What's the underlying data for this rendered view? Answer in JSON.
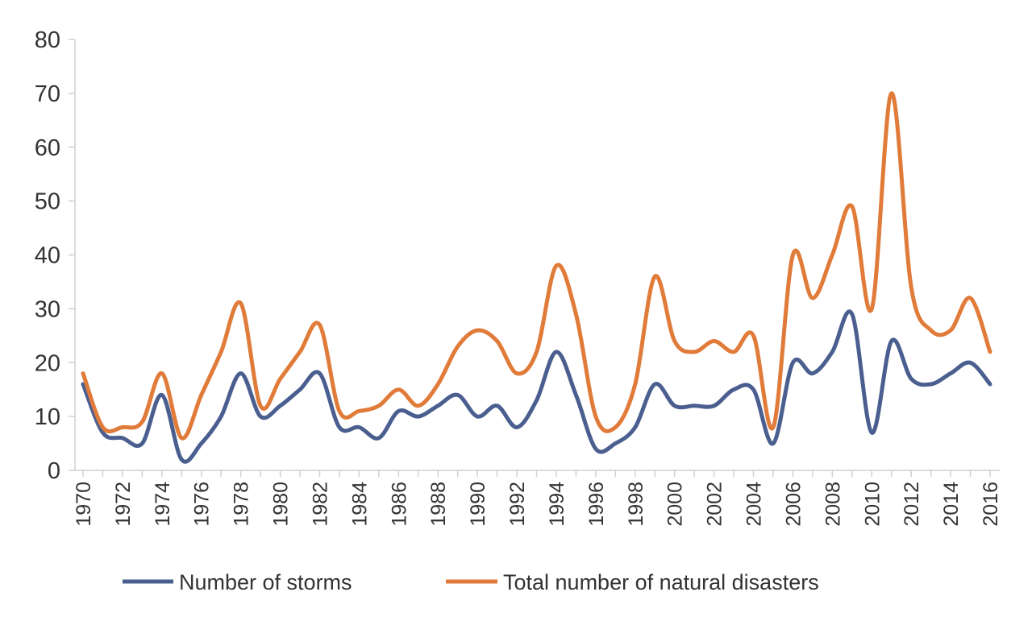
{
  "chart_data": {
    "type": "line",
    "title": "",
    "xlabel": "",
    "ylabel": "",
    "ylim": [
      0,
      80
    ],
    "yticks": [
      "0",
      "10",
      "20",
      "30",
      "40",
      "50",
      "60",
      "70",
      "80"
    ],
    "grid": false,
    "legend_position": "bottom",
    "x": [
      1970,
      1971,
      1972,
      1973,
      1974,
      1975,
      1976,
      1977,
      1978,
      1979,
      1980,
      1981,
      1982,
      1983,
      1984,
      1985,
      1986,
      1987,
      1988,
      1989,
      1990,
      1991,
      1992,
      1993,
      1994,
      1995,
      1996,
      1997,
      1998,
      1999,
      2000,
      2001,
      2002,
      2003,
      2004,
      2005,
      2006,
      2007,
      2008,
      2009,
      2010,
      2011,
      2012,
      2013,
      2014,
      2015,
      2016
    ],
    "xtick_labels": [
      "1970",
      "1972",
      "1974",
      "1976",
      "1978",
      "1980",
      "1982",
      "1984",
      "1986",
      "1988",
      "1990",
      "1992",
      "1994",
      "1996",
      "1998",
      "2000",
      "2002",
      "2004",
      "2006",
      "2008",
      "2010",
      "2012",
      "2014",
      "2016"
    ],
    "series": [
      {
        "name": "Number of storms",
        "color": "#4a5f8f",
        "values": [
          16,
          7,
          6,
          5,
          14,
          2,
          5,
          10,
          18,
          10,
          12,
          15,
          18,
          8,
          8,
          6,
          11,
          10,
          12,
          14,
          10,
          12,
          8,
          13,
          22,
          14,
          4,
          5,
          8,
          16,
          12,
          12,
          12,
          15,
          15,
          5,
          20,
          18,
          22,
          29,
          7,
          24,
          17,
          16,
          18,
          20,
          16
        ]
      },
      {
        "name": "Total number of natural disasters",
        "color": "#e07b39",
        "values": [
          18,
          8,
          8,
          9,
          18,
          6,
          14,
          22,
          31,
          12,
          17,
          22,
          27,
          11,
          11,
          12,
          15,
          12,
          16,
          23,
          26,
          24,
          18,
          22,
          38,
          29,
          10,
          8,
          16,
          36,
          24,
          22,
          24,
          22,
          25,
          8,
          40,
          32,
          40,
          49,
          30,
          70,
          34,
          26,
          26,
          32,
          22
        ]
      }
    ]
  }
}
